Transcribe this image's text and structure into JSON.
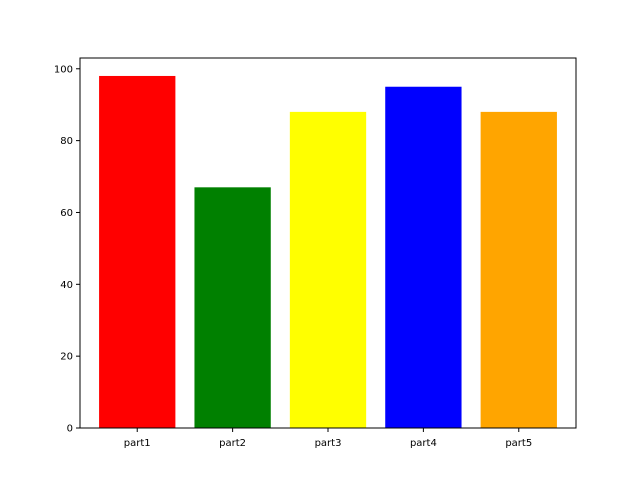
{
  "chart_data": {
    "type": "bar",
    "categories": [
      "part1",
      "part2",
      "part3",
      "part4",
      "part5"
    ],
    "values": [
      98,
      67,
      88,
      95,
      88
    ],
    "colors": [
      "#ff0000",
      "#008000",
      "#ffff00",
      "#0000ff",
      "#ffa500"
    ],
    "ylim": [
      0,
      103
    ],
    "yticks": [
      0,
      20,
      40,
      60,
      80,
      100
    ],
    "grid": false,
    "legend": "none"
  }
}
